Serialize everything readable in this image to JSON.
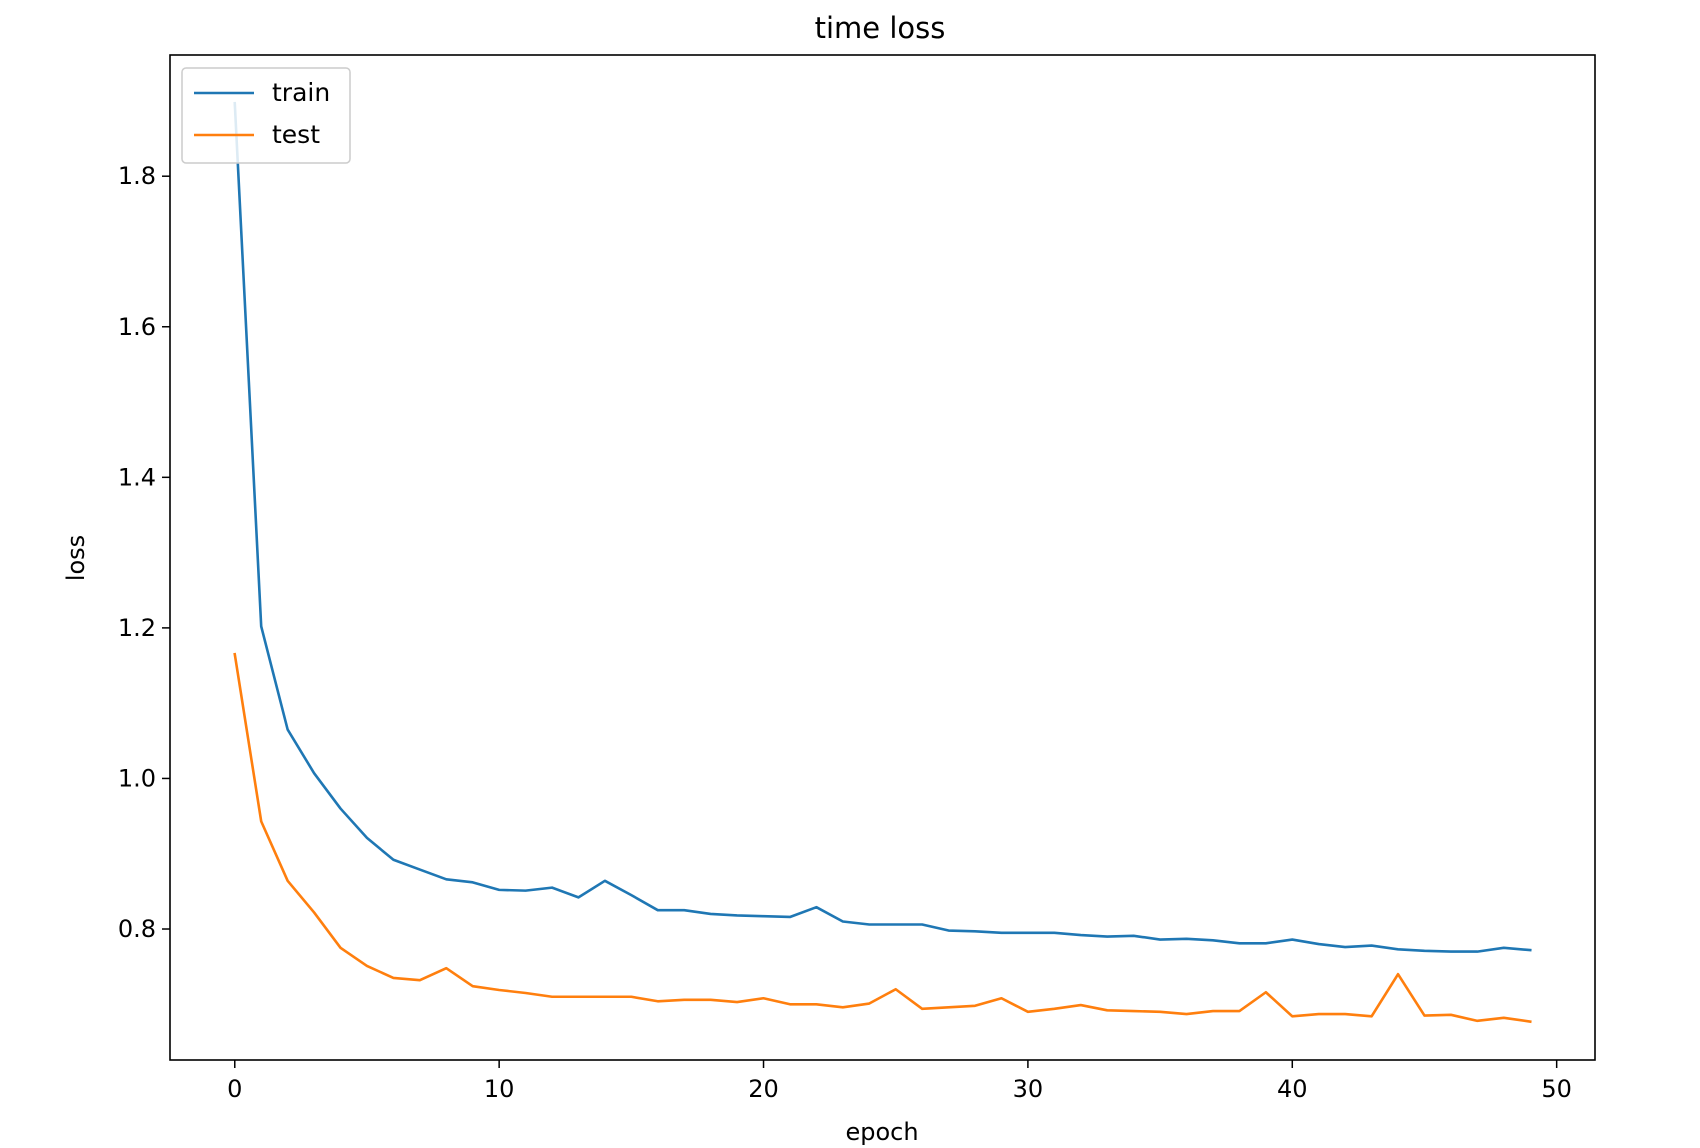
{
  "chart_data": {
    "type": "line",
    "title": "time loss",
    "xlabel": "epoch",
    "ylabel": "loss",
    "xlim": [
      -2.45,
      51.45
    ],
    "ylim": [
      0.626,
      1.961
    ],
    "xticks": [
      0,
      10,
      20,
      30,
      40,
      50
    ],
    "yticks": [
      0.8,
      1.0,
      1.2,
      1.4,
      1.6,
      1.8
    ],
    "grid": false,
    "legend_position": "top-left",
    "x": [
      0,
      1,
      2,
      3,
      4,
      5,
      6,
      7,
      8,
      9,
      10,
      11,
      12,
      13,
      14,
      15,
      16,
      17,
      18,
      19,
      20,
      21,
      22,
      23,
      24,
      25,
      26,
      27,
      28,
      29,
      30,
      31,
      32,
      33,
      34,
      35,
      36,
      37,
      38,
      39,
      40,
      41,
      42,
      43,
      44,
      45,
      46,
      47,
      48,
      49
    ],
    "series": [
      {
        "name": "train",
        "color": "#1f77b4",
        "values": [
          1.897,
          1.202,
          1.065,
          1.007,
          0.96,
          0.921,
          0.892,
          0.879,
          0.866,
          0.862,
          0.852,
          0.851,
          0.855,
          0.842,
          0.864,
          0.845,
          0.825,
          0.825,
          0.82,
          0.818,
          0.817,
          0.816,
          0.829,
          0.81,
          0.806,
          0.806,
          0.806,
          0.798,
          0.797,
          0.795,
          0.795,
          0.795,
          0.792,
          0.79,
          0.791,
          0.786,
          0.787,
          0.785,
          0.781,
          0.781,
          0.786,
          0.78,
          0.776,
          0.778,
          0.773,
          0.771,
          0.77,
          0.77,
          0.775,
          0.772
        ]
      },
      {
        "name": "test",
        "color": "#ff7f0e",
        "values": [
          1.165,
          0.943,
          0.864,
          0.822,
          0.775,
          0.751,
          0.735,
          0.732,
          0.748,
          0.724,
          0.719,
          0.715,
          0.71,
          0.71,
          0.71,
          0.71,
          0.704,
          0.706,
          0.706,
          0.703,
          0.708,
          0.7,
          0.7,
          0.696,
          0.701,
          0.72,
          0.694,
          0.696,
          0.698,
          0.708,
          0.69,
          0.694,
          0.699,
          0.692,
          0.691,
          0.69,
          0.687,
          0.691,
          0.691,
          0.716,
          0.684,
          0.687,
          0.687,
          0.684,
          0.74,
          0.685,
          0.686,
          0.678,
          0.682,
          0.677
        ]
      }
    ]
  }
}
